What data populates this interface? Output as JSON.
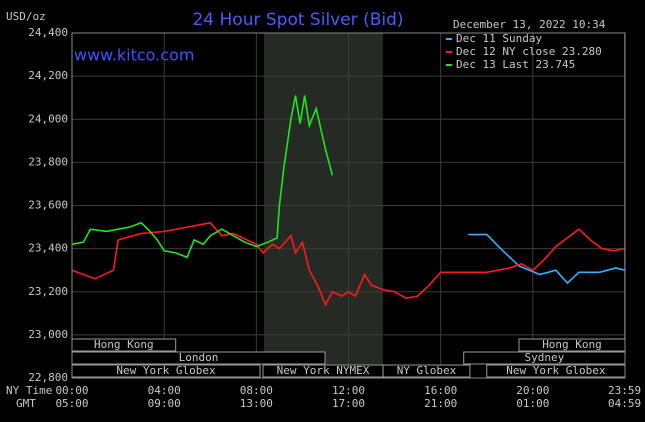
{
  "chart_data": {
    "type": "line",
    "title": "24 Hour Spot Silver (Bid)",
    "site": "www.kitco.com",
    "unit": "USD/oz",
    "timestamp": "December 13, 2022 10:34",
    "x_axis_label": "NY Time",
    "x2_axis_label": "GMT",
    "xlim": [
      0,
      24
    ],
    "ylim": [
      22800,
      24400
    ],
    "xticks": [
      {
        "value": 0,
        "label": "00:00"
      },
      {
        "value": 4,
        "label": "04:00"
      },
      {
        "value": 8,
        "label": "08:00"
      },
      {
        "value": 12,
        "label": "12:00"
      },
      {
        "value": 16,
        "label": "16:00"
      },
      {
        "value": 20,
        "label": "20:00"
      },
      {
        "value": 23.98,
        "label": "23:59"
      }
    ],
    "x2ticks": [
      {
        "value": 0,
        "label": "05:00"
      },
      {
        "value": 4,
        "label": "09:00"
      },
      {
        "value": 8,
        "label": "13:00"
      },
      {
        "value": 12,
        "label": "17:00"
      },
      {
        "value": 16,
        "label": "21:00"
      },
      {
        "value": 20,
        "label": "01:00"
      },
      {
        "value": 23.98,
        "label": "04:59"
      }
    ],
    "yticks": [
      {
        "value": 22800,
        "label": "22,800"
      },
      {
        "value": 23000,
        "label": "23,000"
      },
      {
        "value": 23200,
        "label": "23,200"
      },
      {
        "value": 23400,
        "label": "23,400"
      },
      {
        "value": 23600,
        "label": "23,600"
      },
      {
        "value": 23800,
        "label": "23,800"
      },
      {
        "value": 24000,
        "label": "24,000"
      },
      {
        "value": 24200,
        "label": "24,200"
      },
      {
        "value": 24400,
        "label": "24,400"
      }
    ],
    "grid": true,
    "highlight_x": [
      8.33,
      13.5
    ],
    "sessions": [
      {
        "label": "Hong Kong",
        "start": 0,
        "end": 4.5
      },
      {
        "label": "Hong Kong",
        "start": 19.4,
        "end": 24
      },
      {
        "label": "London",
        "start": 0,
        "end": 10.98
      },
      {
        "label": "Sydney",
        "start": 17,
        "end": 24
      },
      {
        "label": "New York Globex",
        "start": 0,
        "end": 8.16
      },
      {
        "label": "New York NYMEX",
        "start": 8.29,
        "end": 13.5
      },
      {
        "label": "NY Globex",
        "start": 13.5,
        "end": 17.27
      },
      {
        "label": "New York Globex",
        "start": 18,
        "end": 24
      }
    ],
    "series": [
      {
        "name": "Dec 11 Sunday",
        "color": "#2ab4ff",
        "x": [
          17.2,
          18.0,
          18.6,
          19.4,
          20.3,
          21.0,
          21.5,
          22.0,
          22.9,
          23.6,
          24.0
        ],
        "values": [
          23465,
          23465,
          23400,
          23320,
          23280,
          23300,
          23240,
          23290,
          23290,
          23310,
          23300
        ]
      },
      {
        "name": "Dec 12 NY close 23.280",
        "color": "#ff1a1a",
        "x": [
          0,
          1,
          1.8,
          2,
          3,
          4,
          5,
          6,
          6.5,
          7,
          8,
          8.3,
          8.7,
          9,
          9.5,
          9.7,
          10,
          10.3,
          10.7,
          11,
          11.3,
          11.7,
          12,
          12.3,
          12.7,
          13,
          13.5,
          14,
          14.5,
          15,
          15.5,
          16,
          17,
          18,
          19,
          19.5,
          20,
          20.5,
          21,
          21.5,
          22,
          22.5,
          23,
          23.5,
          24
        ],
        "values": [
          23300,
          23260,
          23300,
          23440,
          23470,
          23480,
          23500,
          23520,
          23460,
          23470,
          23420,
          23380,
          23420,
          23400,
          23460,
          23380,
          23430,
          23300,
          23220,
          23140,
          23200,
          23180,
          23200,
          23180,
          23280,
          23230,
          23210,
          23200,
          23170,
          23180,
          23230,
          23290,
          23290,
          23290,
          23310,
          23330,
          23300,
          23350,
          23410,
          23450,
          23490,
          23440,
          23400,
          23390,
          23400
        ]
      },
      {
        "name": "Dec 13 Last 23.745",
        "color": "#1ee61e",
        "x": [
          0,
          0.5,
          0.8,
          1.5,
          2,
          2.5,
          3,
          3.3,
          3.7,
          4,
          4.5,
          5,
          5.3,
          5.7,
          6,
          6.5,
          7,
          7.5,
          8,
          8.5,
          8.9,
          9.0,
          9.2,
          9.5,
          9.7,
          9.9,
          10.1,
          10.3,
          10.6,
          11.0,
          11.3
        ],
        "values": [
          23420,
          23430,
          23490,
          23480,
          23490,
          23500,
          23520,
          23490,
          23440,
          23390,
          23380,
          23360,
          23440,
          23420,
          23460,
          23490,
          23460,
          23430,
          23410,
          23430,
          23450,
          23600,
          23780,
          24000,
          24110,
          23980,
          24110,
          23970,
          24050,
          23860,
          23740
        ]
      }
    ]
  }
}
